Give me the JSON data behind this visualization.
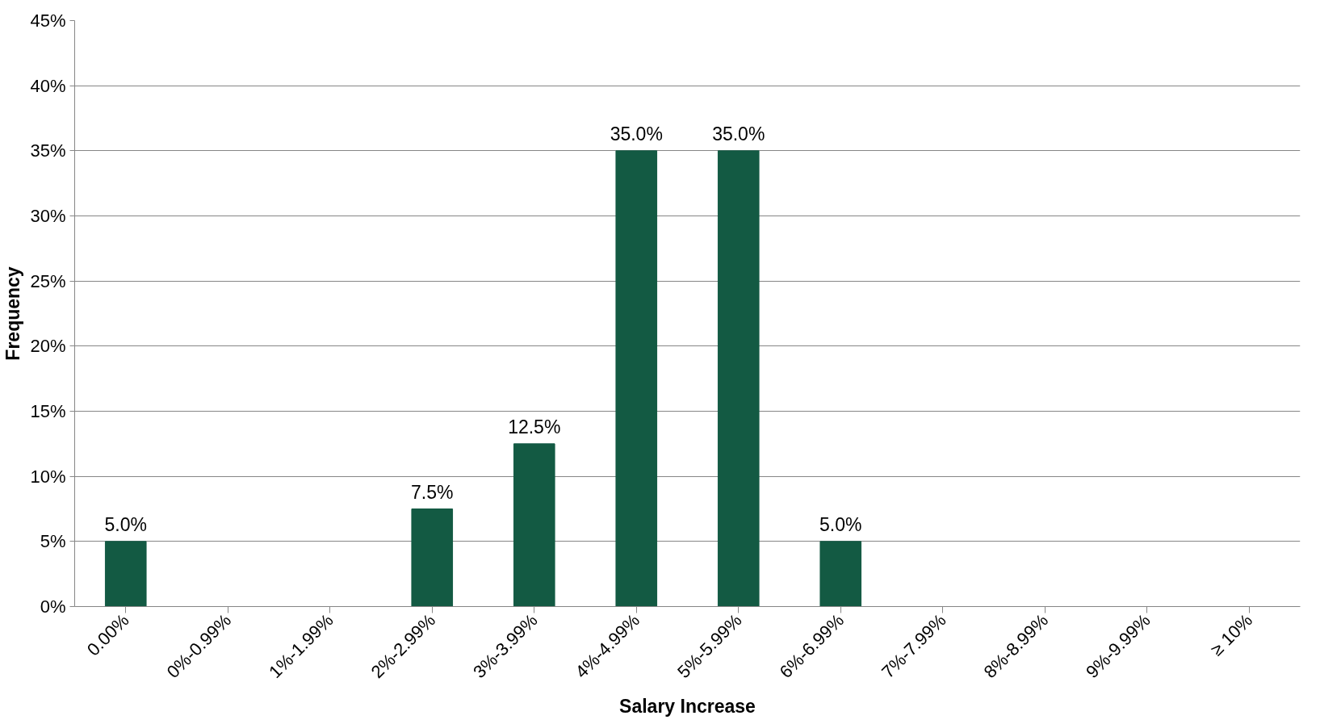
{
  "chart_data": {
    "type": "bar",
    "xlabel": "Salary Increase",
    "ylabel": "Frequency",
    "categories": [
      "0.00%",
      "0%-0.99%",
      "1%-1.99%",
      "2%-2.99%",
      "3%-3.99%",
      "4%-4.99%",
      "5%-5.99%",
      "6%-6.99%",
      "7%-7.99%",
      "8%-8.99%",
      "9%-9.99%",
      "≥ 10%"
    ],
    "values": [
      5,
      0,
      0,
      7.5,
      12.5,
      35,
      35,
      5,
      0,
      0,
      0,
      0
    ],
    "value_labels": [
      "5.0%",
      null,
      null,
      "7.5%",
      "12.5%",
      "35.0%",
      "35.0%",
      "5.0%",
      null,
      null,
      null,
      null
    ],
    "color": "#135a43",
    "ylim": [
      0,
      45
    ],
    "yticks": [
      {
        "value": 0,
        "label": "0%"
      },
      {
        "value": 5,
        "label": "5%"
      },
      {
        "value": 10,
        "label": "10%"
      },
      {
        "value": 15,
        "label": "15%"
      },
      {
        "value": 20,
        "label": "20%"
      },
      {
        "value": 25,
        "label": "25%"
      },
      {
        "value": 30,
        "label": "30%"
      },
      {
        "value": 35,
        "label": "35%"
      },
      {
        "value": 40,
        "label": "40%"
      },
      {
        "value": 45,
        "label": "45%"
      }
    ],
    "grid": "y"
  }
}
